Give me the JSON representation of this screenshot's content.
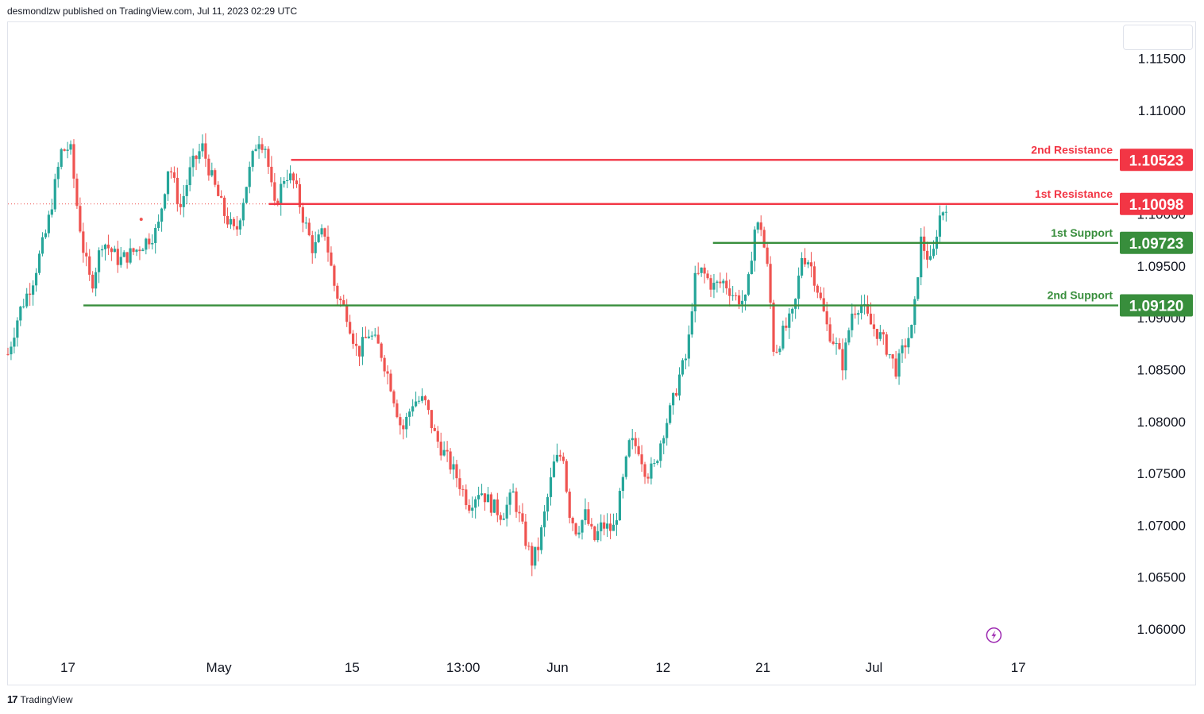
{
  "header": {
    "published_line": "desmondlzw published on TradingView.com, Jul 11, 2023 02:29 UTC"
  },
  "footer": {
    "brand": "TradingView",
    "logo_glyph": "17"
  },
  "colors": {
    "up": "#26a69a",
    "down": "#ef5350",
    "resistance": "#f23645",
    "support": "#388e3c",
    "axis_text": "#131722"
  },
  "chart_data": {
    "type": "candlestick",
    "symbol_hint": "EUR/USD daily-style price",
    "ylim": [
      1.0577,
      1.1185
    ],
    "y_ticks": [
      1.06,
      1.065,
      1.07,
      1.075,
      1.08,
      1.085,
      1.09,
      1.095,
      1.1,
      1.105,
      1.11,
      1.115
    ],
    "y_tick_labels": [
      "1.06000",
      "1.06500",
      "1.07000",
      "1.07500",
      "1.08000",
      "1.08500",
      "1.09000",
      "1.09500",
      "1.10000",
      "1.10500",
      "1.11000",
      "1.11500"
    ],
    "x_tick_labels": [
      "17",
      "May",
      "15",
      "13:00",
      "Jun",
      "12",
      "21",
      "Jul",
      "17"
    ],
    "x_tick_positions": [
      0.054,
      0.19,
      0.31,
      0.41,
      0.495,
      0.59,
      0.68,
      0.78,
      0.91
    ],
    "levels": [
      {
        "name": "2nd Resistance",
        "value": 1.10523,
        "label": "1.10523",
        "kind": "resistance",
        "start_frac": 0.255
      },
      {
        "name": "1st Resistance",
        "value": 1.10098,
        "label": "1.10098",
        "kind": "resistance",
        "start_frac": 0.235
      },
      {
        "name": "1st Support",
        "value": 1.09723,
        "label": "1.09723",
        "kind": "support",
        "start_frac": 0.635
      },
      {
        "name": "2nd Support",
        "value": 1.0912,
        "label": "1.09120",
        "kind": "support",
        "start_frac": 0.068
      }
    ],
    "close_path": [
      [
        0.0,
        1.0865
      ],
      [
        0.01,
        1.0905
      ],
      [
        0.022,
        1.0935
      ],
      [
        0.035,
        1.0985
      ],
      [
        0.048,
        1.106
      ],
      [
        0.056,
        1.1065
      ],
      [
        0.062,
        1.101
      ],
      [
        0.068,
        1.0965
      ],
      [
        0.075,
        1.093
      ],
      [
        0.085,
        1.0975
      ],
      [
        0.1,
        1.0955
      ],
      [
        0.115,
        1.0965
      ],
      [
        0.125,
        1.0975
      ],
      [
        0.135,
        1.0985
      ],
      [
        0.145,
        1.105
      ],
      [
        0.155,
        1.1005
      ],
      [
        0.165,
        1.1045
      ],
      [
        0.175,
        1.1065
      ],
      [
        0.185,
        1.103
      ],
      [
        0.195,
        1.1
      ],
      [
        0.205,
        1.098
      ],
      [
        0.215,
        1.103
      ],
      [
        0.225,
        1.1075
      ],
      [
        0.232,
        1.1065
      ],
      [
        0.24,
        1.1005
      ],
      [
        0.25,
        1.104
      ],
      [
        0.258,
        1.103
      ],
      [
        0.265,
        1.1
      ],
      [
        0.275,
        1.0965
      ],
      [
        0.285,
        1.0985
      ],
      [
        0.295,
        1.0925
      ],
      [
        0.305,
        1.0905
      ],
      [
        0.315,
        1.0865
      ],
      [
        0.325,
        1.0885
      ],
      [
        0.335,
        1.087
      ],
      [
        0.345,
        1.0835
      ],
      [
        0.355,
        1.079
      ],
      [
        0.365,
        1.082
      ],
      [
        0.375,
        1.082
      ],
      [
        0.385,
        1.0785
      ],
      [
        0.395,
        1.0765
      ],
      [
        0.405,
        1.0745
      ],
      [
        0.415,
        1.072
      ],
      [
        0.425,
        1.0735
      ],
      [
        0.435,
        1.072
      ],
      [
        0.445,
        1.071
      ],
      [
        0.455,
        1.073
      ],
      [
        0.465,
        1.069
      ],
      [
        0.472,
        1.0665
      ],
      [
        0.478,
        1.068
      ],
      [
        0.485,
        1.072
      ],
      [
        0.492,
        1.076
      ],
      [
        0.5,
        1.077
      ],
      [
        0.505,
        1.0715
      ],
      [
        0.512,
        1.0695
      ],
      [
        0.52,
        1.071
      ],
      [
        0.528,
        1.0685
      ],
      [
        0.535,
        1.07
      ],
      [
        0.545,
        1.0695
      ],
      [
        0.552,
        1.073
      ],
      [
        0.56,
        1.078
      ],
      [
        0.568,
        1.0775
      ],
      [
        0.575,
        1.075
      ],
      [
        0.582,
        1.0755
      ],
      [
        0.59,
        1.079
      ],
      [
        0.598,
        1.0815
      ],
      [
        0.605,
        1.0845
      ],
      [
        0.612,
        1.0865
      ],
      [
        0.618,
        1.0935
      ],
      [
        0.625,
        1.0945
      ],
      [
        0.635,
        1.093
      ],
      [
        0.645,
        1.0935
      ],
      [
        0.655,
        1.092
      ],
      [
        0.665,
        1.0915
      ],
      [
        0.672,
        1.0985
      ],
      [
        0.678,
        1.099
      ],
      [
        0.685,
        1.094
      ],
      [
        0.69,
        1.0865
      ],
      [
        0.698,
        1.0885
      ],
      [
        0.708,
        1.0905
      ],
      [
        0.715,
        1.096
      ],
      [
        0.722,
        1.0955
      ],
      [
        0.73,
        1.0925
      ],
      [
        0.738,
        1.089
      ],
      [
        0.745,
        1.0875
      ],
      [
        0.752,
        1.0855
      ],
      [
        0.76,
        1.0905
      ],
      [
        0.768,
        1.0915
      ],
      [
        0.776,
        1.0895
      ],
      [
        0.784,
        1.0885
      ],
      [
        0.792,
        1.087
      ],
      [
        0.8,
        1.085
      ],
      [
        0.808,
        1.0875
      ],
      [
        0.815,
        1.089
      ],
      [
        0.822,
        1.0975
      ],
      [
        0.828,
        1.096
      ],
      [
        0.832,
        1.095
      ],
      [
        0.838,
        1.0995
      ],
      [
        0.845,
        1.101
      ]
    ],
    "marker_dot": {
      "x_frac": 0.12,
      "value": 1.0995
    },
    "lightning_icon_frac": {
      "x": 0.888,
      "y": 0.972
    }
  }
}
